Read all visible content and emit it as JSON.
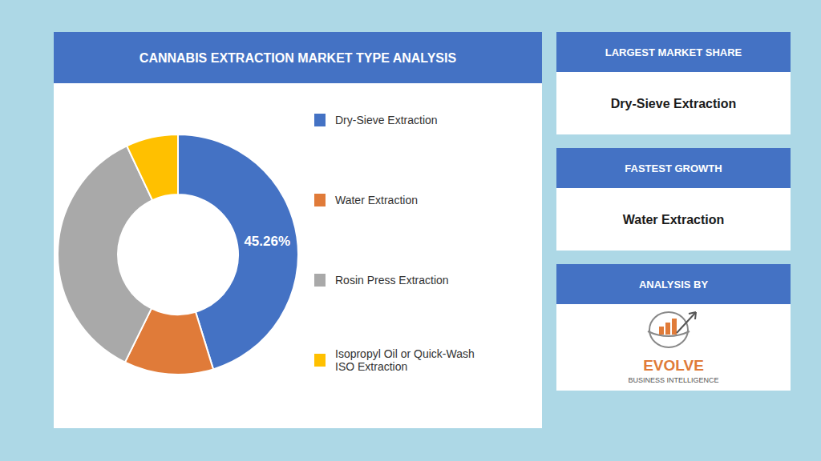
{
  "chart_data": {
    "type": "pie",
    "title": "CANNABIS EXTRACTION MARKET TYPE ANALYSIS",
    "categories": [
      "Dry-Sieve Extraction",
      "Water Extraction",
      "Rosin Press Extraction",
      "Isopropyl Oil or Quick-Wash\nISO Extraction"
    ],
    "values": [
      45.26,
      12.0,
      35.74,
      7.0
    ],
    "value_labels": [
      "45.26%",
      null,
      null,
      null
    ],
    "colors": [
      "#4472C4",
      "#E07B39",
      "#A9A9A9",
      "#FFC000"
    ],
    "annotations": [
      {
        "heading": "LARGEST MARKET SHARE",
        "text": "Dry-Sieve Extraction"
      },
      {
        "heading": "FASTEST GROWTH",
        "text": "Water Extraction"
      },
      {
        "heading": "ANALYSIS BY",
        "text": "EVOLVE",
        "subtext": "BUSINESS INTELLIGENCE",
        "color": "#E07B39"
      }
    ]
  }
}
